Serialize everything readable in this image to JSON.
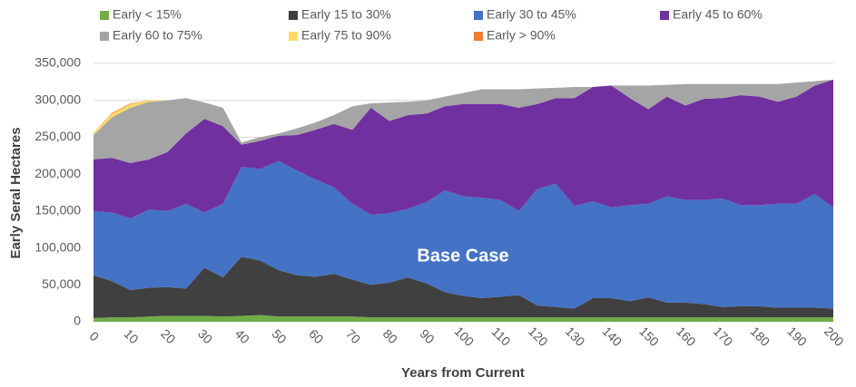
{
  "chart_data": {
    "type": "stacked_area",
    "annotation": "Base Case",
    "y_label": "Early Seral Hectares",
    "x_label": "Years from Current",
    "x": [
      0,
      5,
      10,
      15,
      20,
      25,
      30,
      35,
      40,
      45,
      50,
      55,
      60,
      65,
      70,
      75,
      80,
      85,
      90,
      95,
      100,
      105,
      110,
      115,
      120,
      125,
      130,
      135,
      140,
      145,
      150,
      155,
      160,
      165,
      170,
      175,
      180,
      185,
      190,
      195,
      200
    ],
    "series": [
      {
        "name": "Early < 15%",
        "color": "#70ad47",
        "values": [
          5000,
          6000,
          6000,
          7000,
          8000,
          8000,
          8000,
          7000,
          8000,
          9000,
          7000,
          7000,
          7000,
          7000,
          7000,
          6000,
          6000,
          6000,
          6000,
          6000,
          6000,
          6000,
          6000,
          6000,
          6000,
          6000,
          6000,
          6000,
          6000,
          6000,
          6000,
          6000,
          6000,
          6000,
          6000,
          6000,
          6000,
          6000,
          6000,
          6000,
          6000
        ]
      },
      {
        "name": "Early 15 to 30%",
        "color": "#404040",
        "values": [
          58000,
          49000,
          37000,
          39000,
          39000,
          37000,
          65000,
          53000,
          80000,
          74000,
          63000,
          56000,
          54000,
          58000,
          50000,
          44000,
          47000,
          54000,
          46000,
          34000,
          29000,
          26000,
          28000,
          30000,
          16000,
          14000,
          12000,
          26000,
          26000,
          22000,
          27000,
          20000,
          20000,
          18000,
          14000,
          15000,
          15000,
          13000,
          13000,
          13000,
          12000
        ]
      },
      {
        "name": "Early 30 to 45%",
        "color": "#4472c4",
        "values": [
          87000,
          93000,
          97000,
          106000,
          103000,
          115000,
          75000,
          100000,
          122000,
          124000,
          148000,
          142000,
          132000,
          117000,
          103000,
          95000,
          94000,
          93000,
          110000,
          138000,
          135000,
          136000,
          131000,
          114000,
          158000,
          167000,
          139000,
          131000,
          123000,
          130000,
          127000,
          144000,
          139000,
          141000,
          147000,
          137000,
          137000,
          141000,
          141000,
          154000,
          137000
        ]
      },
      {
        "name": "Early 45 to 60%",
        "color": "#7030a0",
        "values": [
          70000,
          74000,
          75000,
          68000,
          80000,
          95000,
          127000,
          105000,
          30000,
          38000,
          34000,
          48000,
          67000,
          86000,
          100000,
          145000,
          125000,
          127000,
          120000,
          114000,
          125000,
          127000,
          130000,
          140000,
          115000,
          116000,
          146000,
          155000,
          165000,
          145000,
          128000,
          135000,
          128000,
          137000,
          136000,
          149000,
          147000,
          138000,
          145000,
          147000,
          173000
        ]
      },
      {
        "name": "Early 60 to 75%",
        "color": "#a5a5a5",
        "values": [
          33000,
          55000,
          75000,
          78000,
          70000,
          48000,
          22000,
          25000,
          3000,
          5000,
          3000,
          9000,
          10000,
          12000,
          32000,
          6000,
          25000,
          18000,
          18000,
          13000,
          15000,
          20000,
          20000,
          25000,
          21000,
          14000,
          15000,
          0,
          0,
          17000,
          32000,
          16000,
          29000,
          20000,
          19000,
          15000,
          17000,
          24000,
          19000,
          6000,
          0
        ]
      },
      {
        "name": "Early 75 to 90%",
        "color": "#ffd966",
        "values": [
          3000,
          5000,
          5000,
          2000,
          0,
          0,
          0,
          0,
          0,
          0,
          0,
          0,
          0,
          0,
          0,
          0,
          0,
          0,
          0,
          0,
          0,
          0,
          0,
          0,
          0,
          0,
          0,
          0,
          0,
          0,
          0,
          0,
          0,
          0,
          0,
          0,
          0,
          0,
          0,
          0,
          0
        ]
      },
      {
        "name": "Early > 90%",
        "color": "#ed7d31",
        "values": [
          0,
          1000,
          1000,
          0,
          0,
          0,
          0,
          0,
          0,
          0,
          0,
          0,
          0,
          0,
          0,
          0,
          0,
          0,
          0,
          0,
          0,
          0,
          0,
          0,
          0,
          0,
          0,
          0,
          0,
          0,
          0,
          0,
          0,
          0,
          0,
          0,
          0,
          0,
          0,
          0,
          0
        ]
      }
    ],
    "xlim": [
      0,
      200
    ],
    "xticks": [
      0,
      10,
      20,
      30,
      40,
      50,
      60,
      70,
      80,
      90,
      100,
      110,
      120,
      130,
      140,
      150,
      160,
      170,
      180,
      190,
      200
    ],
    "ylim": [
      0,
      350000
    ],
    "yticks": [
      0,
      {
        "value": 50000,
        "label": "50,000"
      },
      {
        "value": 100000,
        "label": "100,000"
      },
      {
        "value": 150000,
        "label": "150,000"
      },
      {
        "value": 200000,
        "label": "200,000"
      },
      {
        "value": 250000,
        "label": "250,000"
      },
      {
        "value": 300000,
        "label": "300,000"
      },
      {
        "value": 350000,
        "label": "350,000"
      }
    ],
    "grid": true,
    "legend": "top"
  }
}
